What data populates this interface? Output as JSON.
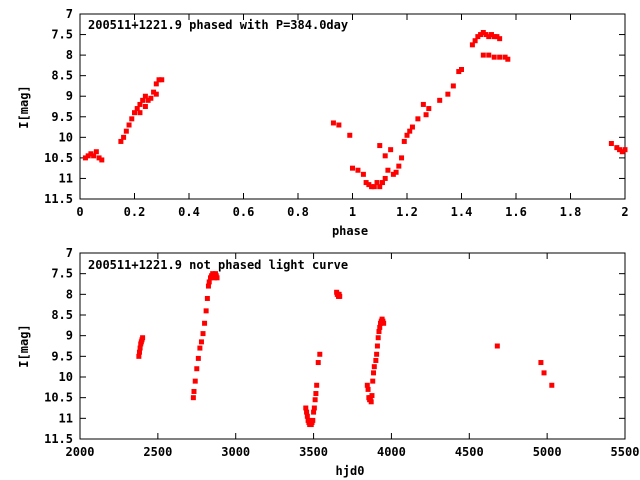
{
  "chart_data": [
    {
      "type": "scatter",
      "title": "200511+1221.9 phased with P=384.0day",
      "xlabel": "phase",
      "ylabel": "I[mag]",
      "xlim": [
        0,
        2
      ],
      "ylim": [
        7,
        11.5
      ],
      "y_inverted": true,
      "xticks": [
        "0",
        "0.2",
        "0.4",
        "0.6",
        "0.8",
        "1",
        "1.2",
        "1.4",
        "1.6",
        "1.8",
        "2"
      ],
      "yticks": [
        "7",
        "7.5",
        "8",
        "8.5",
        "9",
        "9.5",
        "10",
        "10.5",
        "11",
        "11.5"
      ],
      "marker_color": "#ff0000",
      "grid": false,
      "series": [
        {
          "x": [
            0.02,
            0.03,
            0.04,
            0.05,
            0.06,
            0.07,
            0.08,
            0.15,
            0.16,
            0.17,
            0.18,
            0.19,
            0.2,
            0.21,
            0.22,
            0.22,
            0.23,
            0.24,
            0.24,
            0.25,
            0.26,
            0.27,
            0.28,
            0.28,
            0.29,
            0.3,
            0.93,
            0.95,
            0.99,
            1.0,
            1.02,
            1.04,
            1.05,
            1.06,
            1.07,
            1.08,
            1.09,
            1.1,
            1.11,
            1.12,
            1.13,
            1.1,
            1.12,
            1.14,
            1.15,
            1.16,
            1.17,
            1.18,
            1.19,
            1.2,
            1.21,
            1.22,
            1.24,
            1.26,
            1.27,
            1.28,
            1.32,
            1.35,
            1.37,
            1.39,
            1.4,
            1.44,
            1.45,
            1.46,
            1.47,
            1.48,
            1.49,
            1.5,
            1.51,
            1.52,
            1.53,
            1.54,
            1.48,
            1.5,
            1.52,
            1.54,
            1.56,
            1.57,
            1.95,
            1.97,
            1.98,
            1.99,
            2.0
          ],
          "y": [
            10.5,
            10.45,
            10.4,
            10.45,
            10.35,
            10.5,
            10.55,
            10.1,
            10.0,
            9.85,
            9.7,
            9.55,
            9.4,
            9.3,
            9.2,
            9.4,
            9.1,
            9.0,
            9.25,
            9.1,
            9.05,
            8.9,
            8.95,
            8.7,
            8.6,
            8.6,
            9.65,
            9.7,
            9.95,
            10.75,
            10.8,
            10.9,
            11.1,
            11.15,
            11.2,
            11.2,
            11.1,
            11.2,
            11.1,
            11.0,
            10.8,
            10.2,
            10.45,
            10.3,
            10.9,
            10.85,
            10.7,
            10.5,
            10.1,
            9.95,
            9.85,
            9.75,
            9.55,
            9.2,
            9.45,
            9.3,
            9.1,
            8.95,
            8.75,
            8.4,
            8.35,
            7.75,
            7.65,
            7.55,
            7.5,
            7.45,
            7.5,
            7.55,
            7.5,
            7.55,
            7.55,
            7.6,
            8.0,
            8.0,
            8.05,
            8.05,
            8.05,
            8.1,
            10.15,
            10.25,
            10.3,
            10.35,
            10.3
          ]
        }
      ]
    },
    {
      "type": "scatter",
      "title": "200511+1221.9 not phased light curve",
      "xlabel": "hjd0",
      "ylabel": "I[mag]",
      "xlim": [
        2000,
        5500
      ],
      "ylim": [
        7,
        11.5
      ],
      "y_inverted": true,
      "xticks": [
        "2000",
        "2500",
        "3000",
        "3500",
        "4000",
        "4500",
        "5000",
        "5500"
      ],
      "yticks": [
        "7",
        "7.5",
        "8",
        "8.5",
        "9",
        "9.5",
        "10",
        "10.5",
        "11",
        "11.5"
      ],
      "marker_color": "#ff0000",
      "grid": false,
      "series": [
        {
          "x": [
            2378,
            2382,
            2386,
            2390,
            2394,
            2398,
            2402,
            2728,
            2732,
            2740,
            2750,
            2760,
            2770,
            2780,
            2790,
            2800,
            2810,
            2818,
            2825,
            2830,
            2838,
            2845,
            2852,
            2858,
            2865,
            2870,
            2875,
            2880,
            3450,
            3455,
            3460,
            3465,
            3470,
            3475,
            3480,
            3485,
            3490,
            3495,
            3500,
            3505,
            3510,
            3515,
            3520,
            3530,
            3540,
            3648,
            3652,
            3656,
            3660,
            3664,
            3668,
            3845,
            3850,
            3855,
            3860,
            3865,
            3870,
            3875,
            3880,
            3885,
            3890,
            3900,
            3905,
            3910,
            3915,
            3920,
            3925,
            3930,
            3935,
            3940,
            3945,
            3950,
            4680,
            4960,
            4980,
            5030
          ],
          "y": [
            9.5,
            9.4,
            9.3,
            9.2,
            9.15,
            9.1,
            9.05,
            10.5,
            10.35,
            10.1,
            9.8,
            9.55,
            9.3,
            9.15,
            8.95,
            8.7,
            8.4,
            8.1,
            7.8,
            7.7,
            7.6,
            7.55,
            7.5,
            7.55,
            7.6,
            7.5,
            7.55,
            7.6,
            10.75,
            10.85,
            10.95,
            11.05,
            11.1,
            11.15,
            11.1,
            11.15,
            11.1,
            11.05,
            10.85,
            10.75,
            10.55,
            10.4,
            10.2,
            9.65,
            9.45,
            7.95,
            8.0,
            8.0,
            8.05,
            8.0,
            8.05,
            10.2,
            10.3,
            10.5,
            10.55,
            10.5,
            10.6,
            10.45,
            10.1,
            9.9,
            9.75,
            9.6,
            9.45,
            9.25,
            9.05,
            8.9,
            8.8,
            8.7,
            8.65,
            8.6,
            8.65,
            8.7,
            9.25,
            9.65,
            9.9,
            10.2
          ]
        }
      ]
    }
  ]
}
